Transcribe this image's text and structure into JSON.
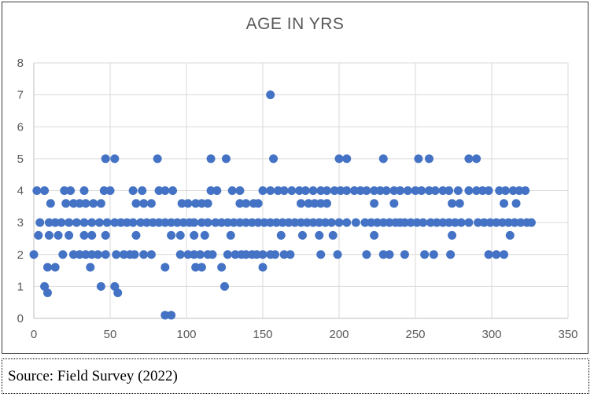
{
  "chart_data": {
    "type": "scatter",
    "title": "AGE IN YRS",
    "xlabel": "",
    "ylabel": "",
    "xlim": [
      0,
      350
    ],
    "ylim": [
      0,
      8
    ],
    "x_ticks": [
      0,
      50,
      100,
      150,
      200,
      250,
      300,
      350
    ],
    "y_ticks": [
      0,
      1,
      2,
      3,
      4,
      5,
      6,
      7,
      8
    ],
    "grid": true,
    "legend": false,
    "marker_color": "#4472C4",
    "gridline_color": "#D9D9D9",
    "axis_color": "#BFBFBF",
    "tick_text_color": "#595959",
    "series_by_level": [
      {
        "y": 7,
        "x": [
          155
        ]
      },
      {
        "y": 5,
        "x": [
          47,
          53,
          81,
          116,
          126,
          157,
          200,
          205,
          229,
          252,
          259,
          285,
          290
        ]
      },
      {
        "y": 4,
        "x": [
          2,
          7,
          20,
          24,
          33,
          46,
          50,
          65,
          71,
          82,
          86,
          91,
          116,
          120,
          130,
          135,
          150,
          155,
          160,
          164,
          169,
          174,
          178,
          183,
          188,
          192,
          197,
          201,
          205,
          210,
          214,
          218,
          223,
          227,
          231,
          236,
          240,
          245,
          250,
          254,
          259,
          263,
          268,
          272,
          278,
          285,
          290,
          294,
          298,
          305,
          309,
          314,
          318,
          322
        ]
      },
      {
        "y": 3.6,
        "x": [
          11,
          21,
          26,
          30,
          34,
          39,
          44,
          67,
          72,
          77,
          97,
          101,
          106,
          110,
          114,
          135,
          139,
          144,
          147,
          175,
          180,
          184,
          188,
          192,
          223,
          236,
          274,
          279,
          308,
          316
        ]
      },
      {
        "y": 3,
        "x": [
          4,
          10,
          14,
          18,
          23,
          28,
          33,
          38,
          43,
          48,
          53,
          57,
          61,
          65,
          70,
          74,
          78,
          82,
          86,
          90,
          94,
          98,
          102,
          105,
          110,
          114,
          119,
          123,
          127,
          131,
          135,
          139,
          143,
          147,
          151,
          155,
          159,
          163,
          167,
          171,
          175,
          179,
          183,
          187,
          191,
          195,
          200,
          205,
          211,
          217,
          221,
          225,
          229,
          233,
          237,
          240,
          243,
          247,
          251,
          255,
          260,
          264,
          268,
          272,
          276,
          280,
          285,
          291,
          295,
          299,
          303,
          307,
          311,
          315,
          319,
          323,
          326
        ]
      },
      {
        "y": 2.6,
        "x": [
          3,
          10,
          16,
          23,
          33,
          38,
          47,
          67,
          90,
          96,
          105,
          112,
          129,
          162,
          176,
          187,
          196,
          223,
          274,
          312
        ]
      },
      {
        "y": 2,
        "x": [
          0,
          19,
          26,
          30,
          34,
          38,
          42,
          47,
          54,
          59,
          63,
          66,
          72,
          77,
          96,
          101,
          105,
          109,
          114,
          117,
          127,
          132,
          136,
          139,
          143,
          146,
          150,
          155,
          158,
          164,
          168,
          188,
          199,
          218,
          229,
          233,
          243,
          256,
          262,
          273,
          298,
          303,
          308
        ]
      },
      {
        "y": 1.6,
        "x": [
          9,
          14,
          37,
          86,
          106,
          110,
          123,
          150
        ]
      },
      {
        "y": 1,
        "x": [
          7,
          44,
          53,
          125
        ]
      },
      {
        "y": 0.8,
        "x": [
          9,
          55
        ]
      },
      {
        "y": 0.1,
        "x": [
          86,
          90
        ]
      }
    ]
  },
  "source": {
    "text": "Source: Field Survey (2022)"
  }
}
